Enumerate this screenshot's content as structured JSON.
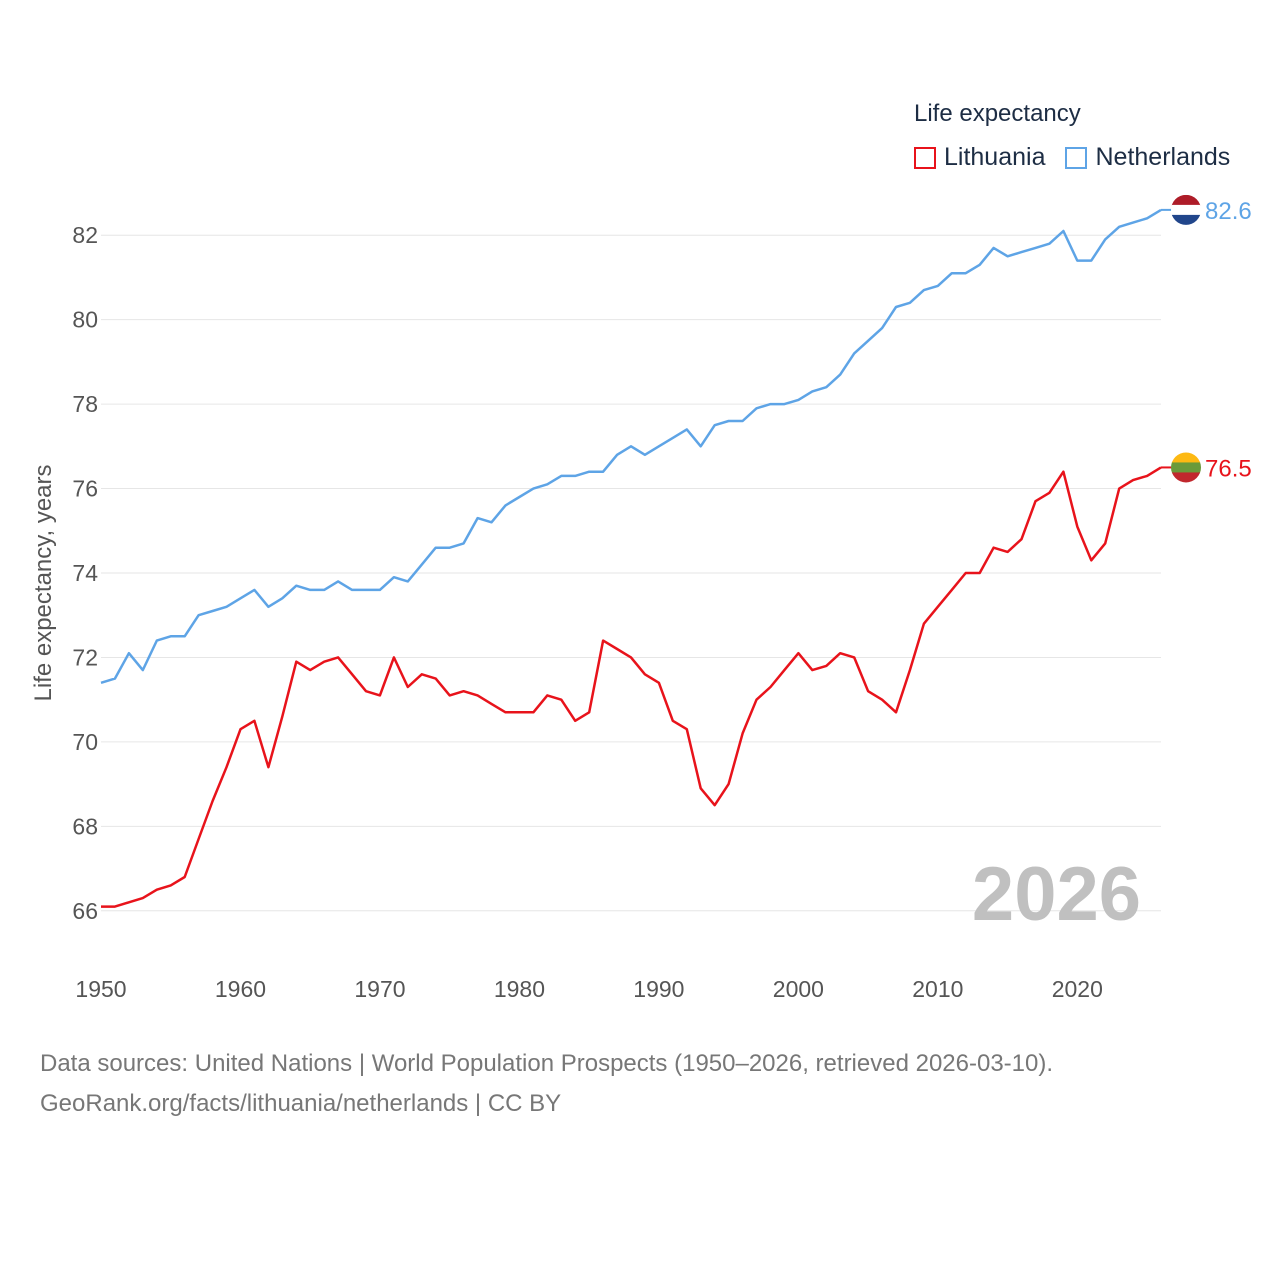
{
  "legend": {
    "title": "Life expectancy",
    "items": [
      {
        "name": "Lithuania",
        "color": "#e8131b"
      },
      {
        "name": "Netherlands",
        "color": "#5ea4e6"
      }
    ]
  },
  "source": {
    "line1": "Data sources: United Nations | World Population Prospects (1950–2026, retrieved 2026-03-10).",
    "line2": "GeoRank.org/facts/lithuania/netherlands | CC BY"
  },
  "chart_data": {
    "type": "line",
    "title": "Life expectancy",
    "xlabel": "",
    "ylabel": "Life expectancy, years",
    "xlim": [
      1950,
      2026
    ],
    "ylim": [
      65,
      83
    ],
    "x_ticks": [
      1950,
      1960,
      1970,
      1980,
      1990,
      2000,
      2010,
      2020
    ],
    "y_ticks": [
      66,
      68,
      70,
      72,
      74,
      76,
      78,
      80,
      82
    ],
    "grid": true,
    "legend_position": "top-right",
    "watermark_year": "2026",
    "x": [
      1950,
      1951,
      1952,
      1953,
      1954,
      1955,
      1956,
      1957,
      1958,
      1959,
      1960,
      1961,
      1962,
      1963,
      1964,
      1965,
      1966,
      1967,
      1968,
      1969,
      1970,
      1971,
      1972,
      1973,
      1974,
      1975,
      1976,
      1977,
      1978,
      1979,
      1980,
      1981,
      1982,
      1983,
      1984,
      1985,
      1986,
      1987,
      1988,
      1989,
      1990,
      1991,
      1992,
      1993,
      1994,
      1995,
      1996,
      1997,
      1998,
      1999,
      2000,
      2001,
      2002,
      2003,
      2004,
      2005,
      2006,
      2007,
      2008,
      2009,
      2010,
      2011,
      2012,
      2013,
      2014,
      2015,
      2016,
      2017,
      2018,
      2019,
      2020,
      2021,
      2022,
      2023,
      2024,
      2025,
      2026
    ],
    "series": [
      {
        "name": "Lithuania",
        "color": "#e8131b",
        "end_label": "76.5",
        "values": [
          66.1,
          66.1,
          66.2,
          66.3,
          66.5,
          66.6,
          66.8,
          67.7,
          68.6,
          69.4,
          70.3,
          70.5,
          69.4,
          70.6,
          71.9,
          71.7,
          71.9,
          72.0,
          71.6,
          71.2,
          71.1,
          72.0,
          71.3,
          71.6,
          71.5,
          71.1,
          71.2,
          71.1,
          70.9,
          70.7,
          70.7,
          70.7,
          71.1,
          71.0,
          70.5,
          70.7,
          72.4,
          72.2,
          72.0,
          71.6,
          71.4,
          70.5,
          70.3,
          68.9,
          68.5,
          69.0,
          70.2,
          71.0,
          71.3,
          71.7,
          72.1,
          71.7,
          71.8,
          72.1,
          72.0,
          71.2,
          71.0,
          70.7,
          71.7,
          72.8,
          73.2,
          73.6,
          74.0,
          74.0,
          74.6,
          74.5,
          74.8,
          75.7,
          75.9,
          76.4,
          75.1,
          74.3,
          74.7,
          76.0,
          76.2,
          76.3,
          76.5
        ]
      },
      {
        "name": "Netherlands",
        "color": "#5ea4e6",
        "end_label": "82.6",
        "values": [
          71.4,
          71.5,
          72.1,
          71.7,
          72.4,
          72.5,
          72.5,
          73.0,
          73.1,
          73.2,
          73.4,
          73.6,
          73.2,
          73.4,
          73.7,
          73.6,
          73.6,
          73.8,
          73.6,
          73.6,
          73.6,
          73.9,
          73.8,
          74.2,
          74.6,
          74.6,
          74.7,
          75.3,
          75.2,
          75.6,
          75.8,
          76.0,
          76.1,
          76.3,
          76.3,
          76.4,
          76.4,
          76.8,
          77.0,
          76.8,
          77.0,
          77.2,
          77.4,
          77.0,
          77.5,
          77.6,
          77.6,
          77.9,
          78.0,
          78.0,
          78.1,
          78.3,
          78.4,
          78.7,
          79.2,
          79.5,
          79.8,
          80.3,
          80.4,
          80.7,
          80.8,
          81.1,
          81.1,
          81.3,
          81.7,
          81.5,
          81.6,
          81.7,
          81.8,
          82.1,
          81.4,
          81.4,
          81.9,
          82.2,
          82.3,
          82.4,
          82.6
        ]
      }
    ]
  }
}
